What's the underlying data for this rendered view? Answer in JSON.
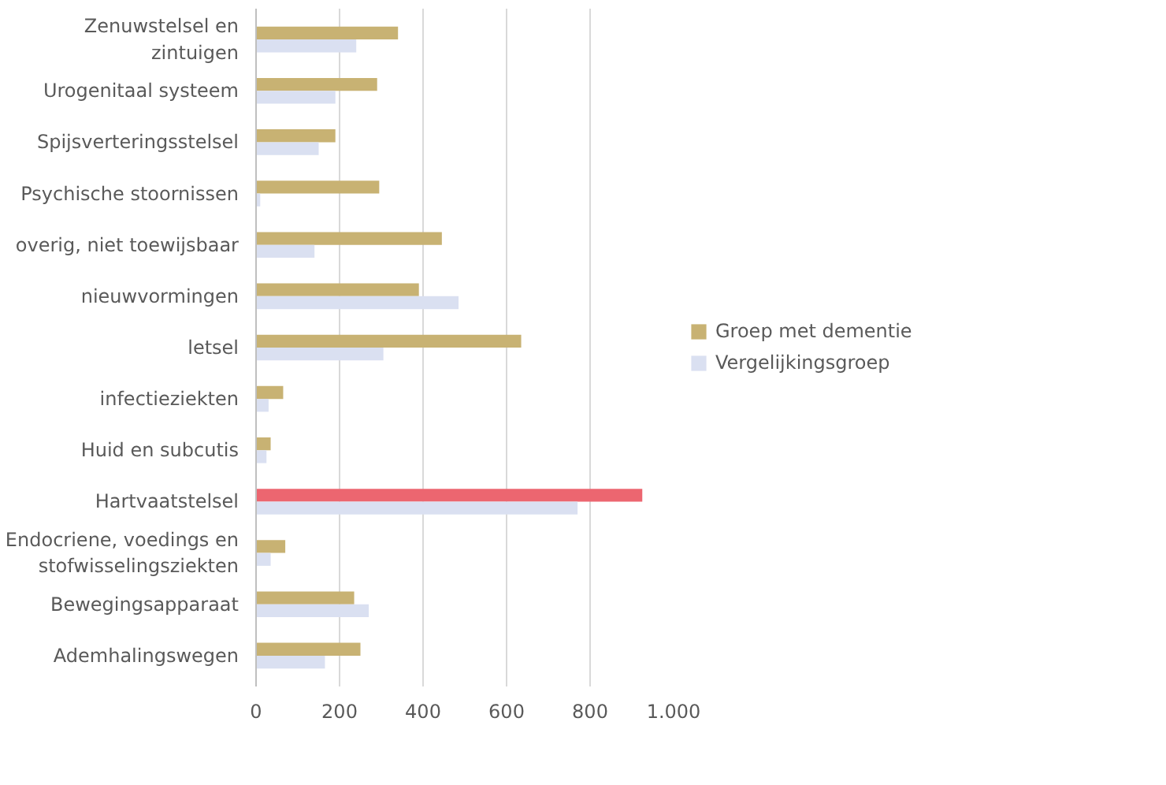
{
  "chart_data": {
    "type": "bar",
    "orientation": "horizontal",
    "categories": [
      "Zenuwstelsel en zintuigen",
      "Urogenitaal systeem",
      "Spijsverteringsstelsel",
      "Psychische stoornissen",
      "overig, niet toewijsbaar",
      "nieuwvormingen",
      "letsel",
      "infectieziekten",
      "Huid en subcutis",
      "Hartvaatstelsel",
      "Endocriene, voedings en stofwisselingsziekten",
      "Bewegingsapparaat",
      "Ademhalingswegen"
    ],
    "series": [
      {
        "name": "Groep met dementie",
        "color": "#c8b273",
        "colors": [
          "#c8b273",
          "#c8b273",
          "#c8b273",
          "#c8b273",
          "#c8b273",
          "#c8b273",
          "#c8b273",
          "#c8b273",
          "#c8b273",
          "#ec6670",
          "#c8b273",
          "#c8b273",
          "#c8b273"
        ],
        "values": [
          340,
          290,
          190,
          295,
          445,
          390,
          635,
          65,
          35,
          925,
          70,
          235,
          250
        ]
      },
      {
        "name": "Vergelijkingsgroep",
        "color": "#dae0f1",
        "values": [
          240,
          190,
          150,
          10,
          140,
          485,
          305,
          30,
          25,
          770,
          35,
          270,
          165
        ]
      }
    ],
    "xlim": [
      0,
      1000
    ],
    "xticks": [
      0,
      200,
      400,
      600,
      800,
      {
        "value": 1000,
        "label": "1.000"
      }
    ],
    "grid": "x",
    "legend": "right"
  }
}
